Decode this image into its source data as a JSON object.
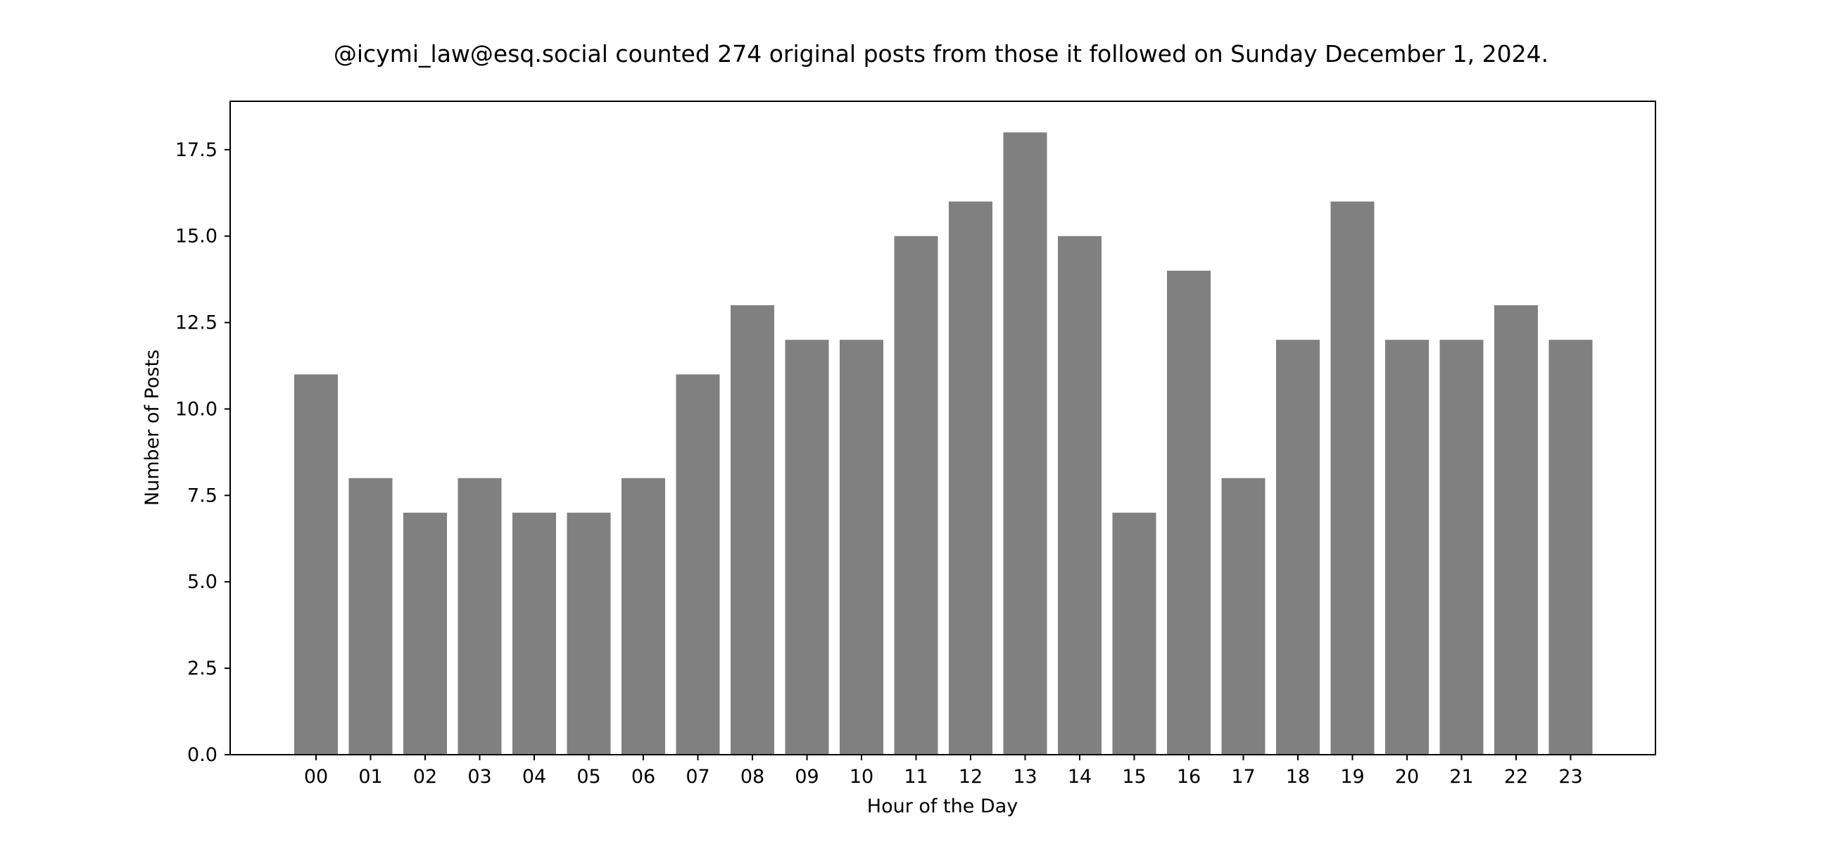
{
  "chart_data": {
    "type": "bar",
    "title": "@icymi_law@esq.social counted 274 original posts from those it followed on Sunday December 1, 2024.",
    "xlabel": "Hour of the Day",
    "ylabel": "Number of Posts",
    "categories": [
      "00",
      "01",
      "02",
      "03",
      "04",
      "05",
      "06",
      "07",
      "08",
      "09",
      "10",
      "11",
      "12",
      "13",
      "14",
      "15",
      "16",
      "17",
      "18",
      "19",
      "20",
      "21",
      "22",
      "23"
    ],
    "values": [
      11,
      8,
      7,
      8,
      7,
      7,
      8,
      11,
      13,
      12,
      12,
      15,
      16,
      18,
      15,
      7,
      14,
      8,
      12,
      16,
      12,
      12,
      13,
      12
    ],
    "ylim": [
      0,
      18.9
    ],
    "yticks": [
      "0.0",
      "2.5",
      "5.0",
      "7.5",
      "10.0",
      "12.5",
      "15.0",
      "17.5"
    ],
    "bar_color": "#808080",
    "grid": false,
    "legend": "none"
  }
}
